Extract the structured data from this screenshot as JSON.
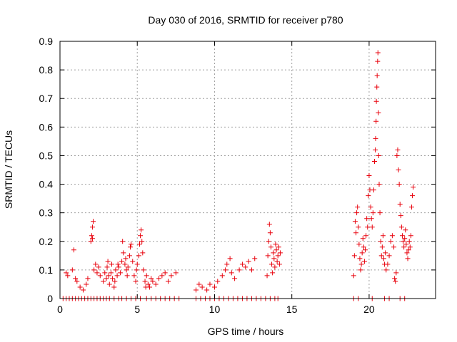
{
  "chart_data": {
    "type": "scatter",
    "title": "Day 030 of 2016, SRMTID for receiver p780",
    "xlabel": "GPS time / hours",
    "ylabel": "SRMTID / TECUs",
    "xlim": [
      0,
      24.3
    ],
    "ylim": [
      0,
      0.9
    ],
    "xticks": [
      0,
      5,
      10,
      15,
      20
    ],
    "xtick_labels": [
      "0",
      "5",
      "10",
      "15",
      "20"
    ],
    "yticks": [
      0,
      0.1,
      0.2,
      0.3,
      0.4,
      0.5,
      0.6,
      0.7,
      0.8,
      0.9
    ],
    "ytick_labels": [
      "0",
      "0.1",
      "0.2",
      "0.3",
      "0.4",
      "0.5",
      "0.6",
      "0.7",
      "0.8",
      "0.9"
    ],
    "grid": true,
    "legend": "none",
    "marker": "plus",
    "color": "#e8000b",
    "series": [
      {
        "name": "SRMTID",
        "points": [
          [
            0.2,
            0.0
          ],
          [
            0.4,
            0.0
          ],
          [
            0.6,
            0.0
          ],
          [
            0.8,
            0.0
          ],
          [
            1.0,
            0.0
          ],
          [
            1.2,
            0.0
          ],
          [
            1.4,
            0.0
          ],
          [
            1.6,
            0.0
          ],
          [
            1.8,
            0.0
          ],
          [
            2.0,
            0.0
          ],
          [
            2.2,
            0.0
          ],
          [
            2.4,
            0.0
          ],
          [
            2.6,
            0.0
          ],
          [
            2.8,
            0.0
          ],
          [
            3.0,
            0.0
          ],
          [
            3.2,
            0.0
          ],
          [
            3.5,
            0.0
          ],
          [
            3.8,
            0.0
          ],
          [
            4.0,
            0.0
          ],
          [
            4.3,
            0.0
          ],
          [
            4.6,
            0.0
          ],
          [
            4.9,
            0.0
          ],
          [
            5.2,
            0.0
          ],
          [
            5.6,
            0.0
          ],
          [
            5.9,
            0.0
          ],
          [
            6.2,
            0.0
          ],
          [
            6.5,
            0.0
          ],
          [
            6.8,
            0.0
          ],
          [
            7.1,
            0.0
          ],
          [
            7.4,
            0.0
          ],
          [
            7.7,
            0.0
          ],
          [
            8.8,
            0.0
          ],
          [
            9.1,
            0.0
          ],
          [
            9.4,
            0.0
          ],
          [
            9.7,
            0.0
          ],
          [
            10.0,
            0.0
          ],
          [
            10.3,
            0.0
          ],
          [
            10.6,
            0.0
          ],
          [
            10.9,
            0.0
          ],
          [
            11.2,
            0.0
          ],
          [
            11.5,
            0.0
          ],
          [
            11.8,
            0.0
          ],
          [
            12.1,
            0.0
          ],
          [
            12.4,
            0.0
          ],
          [
            12.7,
            0.0
          ],
          [
            13.0,
            0.0
          ],
          [
            13.3,
            0.0
          ],
          [
            13.6,
            0.0
          ],
          [
            13.9,
            0.0
          ],
          [
            14.1,
            0.0
          ],
          [
            19.0,
            0.0
          ],
          [
            19.3,
            0.0
          ],
          [
            20.2,
            0.0
          ],
          [
            21.0,
            0.0
          ],
          [
            21.3,
            0.0
          ],
          [
            22.0,
            0.0
          ],
          [
            22.3,
            0.0
          ],
          [
            0.4,
            0.09
          ],
          [
            0.5,
            0.08
          ],
          [
            0.8,
            0.1
          ],
          [
            0.9,
            0.17
          ],
          [
            1.0,
            0.07
          ],
          [
            1.1,
            0.06
          ],
          [
            1.3,
            0.04
          ],
          [
            1.5,
            0.03
          ],
          [
            1.7,
            0.05
          ],
          [
            1.8,
            0.07
          ],
          [
            2.0,
            0.2
          ],
          [
            2.05,
            0.22
          ],
          [
            2.1,
            0.25
          ],
          [
            2.15,
            0.27
          ],
          [
            2.1,
            0.21
          ],
          [
            2.2,
            0.1
          ],
          [
            2.3,
            0.12
          ],
          [
            2.4,
            0.09
          ],
          [
            2.5,
            0.11
          ],
          [
            2.6,
            0.08
          ],
          [
            2.8,
            0.06
          ],
          [
            2.9,
            0.09
          ],
          [
            3.0,
            0.07
          ],
          [
            3.05,
            0.11
          ],
          [
            3.1,
            0.13
          ],
          [
            3.15,
            0.08
          ],
          [
            3.2,
            0.05
          ],
          [
            3.3,
            0.09
          ],
          [
            3.35,
            0.12
          ],
          [
            3.4,
            0.07
          ],
          [
            3.5,
            0.04
          ],
          [
            3.55,
            0.06
          ],
          [
            3.6,
            0.1
          ],
          [
            3.7,
            0.08
          ],
          [
            3.75,
            0.12
          ],
          [
            3.8,
            0.11
          ],
          [
            3.9,
            0.09
          ],
          [
            4.0,
            0.13
          ],
          [
            4.05,
            0.2
          ],
          [
            4.1,
            0.16
          ],
          [
            4.2,
            0.12
          ],
          [
            4.25,
            0.14
          ],
          [
            4.3,
            0.1
          ],
          [
            4.35,
            0.08
          ],
          [
            4.4,
            0.11
          ],
          [
            4.5,
            0.15
          ],
          [
            4.55,
            0.18
          ],
          [
            4.6,
            0.19
          ],
          [
            4.7,
            0.13
          ],
          [
            4.8,
            0.08
          ],
          [
            4.9,
            0.06
          ],
          [
            4.95,
            0.1
          ],
          [
            5.0,
            0.12
          ],
          [
            5.1,
            0.15
          ],
          [
            5.15,
            0.19
          ],
          [
            5.2,
            0.22
          ],
          [
            5.25,
            0.24
          ],
          [
            5.3,
            0.2
          ],
          [
            5.35,
            0.16
          ],
          [
            5.4,
            0.1
          ],
          [
            5.5,
            0.06
          ],
          [
            5.55,
            0.04
          ],
          [
            5.6,
            0.08
          ],
          [
            5.7,
            0.05
          ],
          [
            5.8,
            0.04
          ],
          [
            5.9,
            0.07
          ],
          [
            6.0,
            0.06
          ],
          [
            6.2,
            0.05
          ],
          [
            6.4,
            0.07
          ],
          [
            6.6,
            0.08
          ],
          [
            6.8,
            0.09
          ],
          [
            7.0,
            0.06
          ],
          [
            7.2,
            0.08
          ],
          [
            7.5,
            0.09
          ],
          [
            8.8,
            0.03
          ],
          [
            9.0,
            0.05
          ],
          [
            9.2,
            0.04
          ],
          [
            9.5,
            0.03
          ],
          [
            9.7,
            0.05
          ],
          [
            10.0,
            0.04
          ],
          [
            10.2,
            0.06
          ],
          [
            10.5,
            0.08
          ],
          [
            10.7,
            0.1
          ],
          [
            10.8,
            0.12
          ],
          [
            11.0,
            0.14
          ],
          [
            11.1,
            0.09
          ],
          [
            11.3,
            0.07
          ],
          [
            11.6,
            0.1
          ],
          [
            11.8,
            0.12
          ],
          [
            12.0,
            0.11
          ],
          [
            12.2,
            0.13
          ],
          [
            12.4,
            0.1
          ],
          [
            12.6,
            0.14
          ],
          [
            13.4,
            0.08
          ],
          [
            13.45,
            0.15
          ],
          [
            13.5,
            0.2
          ],
          [
            13.55,
            0.26
          ],
          [
            13.6,
            0.23
          ],
          [
            13.65,
            0.18
          ],
          [
            13.7,
            0.12
          ],
          [
            13.75,
            0.09
          ],
          [
            13.8,
            0.16
          ],
          [
            13.85,
            0.14
          ],
          [
            13.9,
            0.11
          ],
          [
            13.95,
            0.19
          ],
          [
            14.0,
            0.17
          ],
          [
            14.05,
            0.13
          ],
          [
            14.1,
            0.15
          ],
          [
            14.15,
            0.18
          ],
          [
            14.2,
            0.12
          ],
          [
            14.25,
            0.16
          ],
          [
            19.0,
            0.08
          ],
          [
            19.05,
            0.15
          ],
          [
            19.1,
            0.27
          ],
          [
            19.15,
            0.23
          ],
          [
            19.2,
            0.3
          ],
          [
            19.25,
            0.32
          ],
          [
            19.3,
            0.25
          ],
          [
            19.35,
            0.19
          ],
          [
            19.4,
            0.14
          ],
          [
            19.45,
            0.1
          ],
          [
            19.5,
            0.12
          ],
          [
            19.55,
            0.16
          ],
          [
            19.6,
            0.21
          ],
          [
            19.65,
            0.18
          ],
          [
            19.7,
            0.13
          ],
          [
            19.75,
            0.17
          ],
          [
            19.8,
            0.22
          ],
          [
            19.85,
            0.28
          ],
          [
            19.9,
            0.25
          ],
          [
            19.95,
            0.36
          ],
          [
            20.0,
            0.43
          ],
          [
            20.05,
            0.38
          ],
          [
            20.1,
            0.32
          ],
          [
            20.15,
            0.28
          ],
          [
            20.2,
            0.25
          ],
          [
            20.25,
            0.3
          ],
          [
            20.3,
            0.38
          ],
          [
            20.35,
            0.48
          ],
          [
            20.4,
            0.52
          ],
          [
            20.42,
            0.56
          ],
          [
            20.45,
            0.62
          ],
          [
            20.47,
            0.69
          ],
          [
            20.5,
            0.74
          ],
          [
            20.52,
            0.78
          ],
          [
            20.55,
            0.83
          ],
          [
            20.57,
            0.86
          ],
          [
            20.6,
            0.65
          ],
          [
            20.62,
            0.5
          ],
          [
            20.65,
            0.4
          ],
          [
            20.7,
            0.3
          ],
          [
            20.75,
            0.2
          ],
          [
            20.8,
            0.15
          ],
          [
            20.85,
            0.18
          ],
          [
            20.9,
            0.22
          ],
          [
            20.95,
            0.14
          ],
          [
            21.0,
            0.12
          ],
          [
            21.05,
            0.16
          ],
          [
            21.1,
            0.1
          ],
          [
            21.2,
            0.12
          ],
          [
            21.3,
            0.15
          ],
          [
            21.4,
            0.2
          ],
          [
            21.5,
            0.22
          ],
          [
            21.6,
            0.18
          ],
          [
            21.65,
            0.07
          ],
          [
            21.7,
            0.06
          ],
          [
            21.75,
            0.09
          ],
          [
            21.8,
            0.5
          ],
          [
            21.85,
            0.52
          ],
          [
            21.9,
            0.45
          ],
          [
            21.95,
            0.4
          ],
          [
            22.0,
            0.33
          ],
          [
            22.05,
            0.29
          ],
          [
            22.1,
            0.25
          ],
          [
            22.15,
            0.22
          ],
          [
            22.2,
            0.2
          ],
          [
            22.25,
            0.18
          ],
          [
            22.3,
            0.21
          ],
          [
            22.35,
            0.24
          ],
          [
            22.4,
            0.19
          ],
          [
            22.45,
            0.16
          ],
          [
            22.5,
            0.14
          ],
          [
            22.55,
            0.17
          ],
          [
            22.6,
            0.2
          ],
          [
            22.65,
            0.18
          ],
          [
            22.7,
            0.22
          ],
          [
            22.75,
            0.32
          ],
          [
            22.8,
            0.36
          ],
          [
            22.85,
            0.39
          ]
        ]
      }
    ]
  }
}
